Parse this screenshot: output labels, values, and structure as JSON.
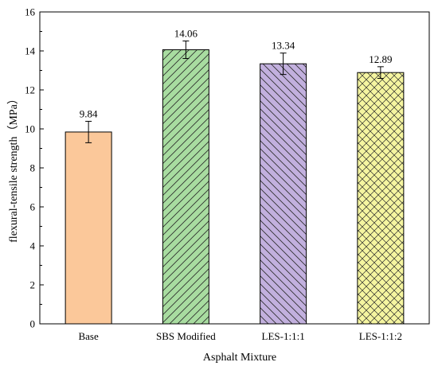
{
  "chart_data": {
    "type": "bar",
    "xlabel": "Asphalt Mixture",
    "ylabel": "flexural-tensile strength（MPa）",
    "ylim": [
      0,
      16
    ],
    "yticks": [
      0,
      2,
      4,
      6,
      8,
      10,
      12,
      14,
      16
    ],
    "grid": false,
    "categories": [
      "Base",
      "SBS Modified",
      "LES-1:1:1",
      "LES-1:1:2"
    ],
    "values": [
      9.84,
      14.06,
      13.34,
      12.89
    ],
    "data_labels": [
      "9.84",
      "14.06",
      "13.34",
      "12.89"
    ],
    "errors": [
      0.55,
      0.45,
      0.55,
      0.3
    ],
    "fills": [
      {
        "color": "#fbc89a",
        "pattern": "none"
      },
      {
        "color": "#a8dca0",
        "pattern": "diagonal-up"
      },
      {
        "color": "#c2b0de",
        "pattern": "diagonal-down"
      },
      {
        "color": "#f5f5a0",
        "pattern": "crosshatch"
      }
    ]
  }
}
